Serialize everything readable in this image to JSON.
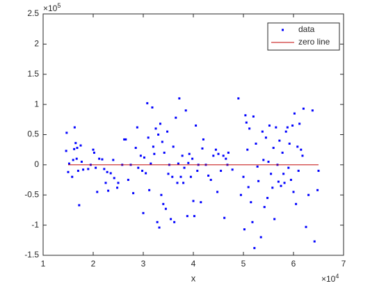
{
  "chart_data": {
    "type": "scatter",
    "xlabel": "x",
    "x_multiplier": {
      "base": "×10",
      "exponent": 4
    },
    "y_multiplier": {
      "base": "×10",
      "exponent": 5
    },
    "xlim": [
      1,
      7
    ],
    "xticks": [
      1,
      2,
      3,
      4,
      5,
      6,
      7
    ],
    "ylim": [
      -1.5,
      2.5
    ],
    "yticks": [
      -1.5,
      -1,
      -0.5,
      0,
      0.5,
      1,
      1.5,
      2,
      2.5
    ],
    "legend": "northeast",
    "series": [
      {
        "name": "data",
        "color": "#0000ff",
        "x": [
          1.47,
          1.46,
          1.5,
          1.52,
          1.58,
          1.6,
          1.62,
          1.63,
          1.65,
          1.67,
          1.68,
          1.7,
          1.72,
          1.75,
          1.77,
          1.8,
          1.9,
          1.95,
          2.0,
          2.02,
          2.05,
          2.08,
          2.12,
          2.18,
          2.22,
          2.25,
          2.28,
          2.3,
          2.35,
          2.4,
          2.42,
          2.48,
          2.5,
          2.58,
          2.62,
          2.65,
          2.7,
          2.75,
          2.8,
          2.85,
          2.88,
          2.9,
          2.95,
          2.98,
          3.0,
          3.02,
          3.05,
          3.08,
          3.1,
          3.12,
          3.15,
          3.18,
          3.2,
          3.22,
          3.25,
          3.28,
          3.3,
          3.32,
          3.34,
          3.36,
          3.38,
          3.4,
          3.42,
          3.45,
          3.48,
          3.5,
          3.52,
          3.55,
          3.58,
          3.6,
          3.62,
          3.65,
          3.68,
          3.7,
          3.72,
          3.75,
          3.78,
          3.8,
          3.82,
          3.85,
          3.88,
          3.9,
          3.92,
          3.95,
          3.98,
          4.0,
          4.02,
          4.05,
          4.08,
          4.1,
          4.15,
          4.18,
          4.2,
          4.25,
          4.3,
          4.35,
          4.4,
          4.45,
          4.48,
          4.5,
          4.55,
          4.6,
          4.62,
          4.65,
          4.68,
          4.7,
          4.78,
          4.9,
          4.95,
          5.0,
          5.02,
          5.04,
          5.06,
          5.08,
          5.1,
          5.12,
          5.15,
          5.18,
          5.2,
          5.22,
          5.25,
          5.28,
          5.3,
          5.35,
          5.38,
          5.4,
          5.42,
          5.45,
          5.48,
          5.5,
          5.52,
          5.55,
          5.58,
          5.6,
          5.62,
          5.65,
          5.68,
          5.7,
          5.72,
          5.75,
          5.78,
          5.8,
          5.82,
          5.85,
          5.88,
          5.9,
          5.92,
          5.95,
          5.98,
          6.0,
          6.02,
          6.05,
          6.08,
          6.1,
          6.12,
          6.15,
          6.18,
          6.2,
          6.25,
          6.3,
          6.38,
          6.42,
          6.48,
          6.5
        ],
        "values": [
          0.53,
          0.23,
          -0.12,
          0.02,
          -0.2,
          0.08,
          0.26,
          0.62,
          0.36,
          0.1,
          0.28,
          -0.1,
          -0.67,
          0.32,
          0.05,
          -0.08,
          -0.07,
          0.0,
          0.25,
          0.2,
          -0.05,
          -0.45,
          0.1,
          0.09,
          -0.07,
          -0.3,
          -0.12,
          -0.43,
          -0.14,
          0.08,
          -0.22,
          -0.38,
          -0.3,
          0.0,
          0.42,
          0.42,
          -0.25,
          0.0,
          -0.47,
          0.28,
          0.62,
          -0.05,
          0.15,
          -0.1,
          -0.8,
          0.12,
          -0.14,
          1.02,
          0.45,
          -0.42,
          0.02,
          0.95,
          0.3,
          0.18,
          0.6,
          -0.95,
          0.5,
          -1.04,
          0.68,
          -0.5,
          0.38,
          -0.65,
          0.2,
          -0.73,
          0.55,
          -0.15,
          0.0,
          -0.9,
          -0.2,
          0.3,
          -0.95,
          0.78,
          -0.3,
          0.02,
          1.1,
          -0.2,
          0.15,
          -0.3,
          -0.05,
          0.9,
          -0.85,
          0.03,
          0.18,
          -0.2,
          0.1,
          -0.6,
          -0.85,
          0.65,
          -0.1,
          0.0,
          -0.62,
          0.27,
          0.42,
          0.0,
          -0.18,
          -0.25,
          0.15,
          0.25,
          -0.45,
          0.18,
          -0.1,
          0.15,
          -0.88,
          0.1,
          0.0,
          0.2,
          -0.08,
          1.1,
          -0.5,
          -0.2,
          -1.07,
          0.82,
          0.7,
          0.25,
          -0.37,
          0.6,
          -0.62,
          -0.95,
          0.8,
          -1.38,
          0.35,
          -0.03,
          -0.27,
          -1.2,
          0.55,
          0.08,
          -0.7,
          0.45,
          -0.55,
          0.05,
          0.65,
          -0.15,
          -0.38,
          0.28,
          -0.9,
          0.62,
          0.0,
          -0.28,
          0.4,
          -0.35,
          0.2,
          -0.15,
          -0.3,
          0.55,
          0.62,
          -0.05,
          0.35,
          -0.25,
          0.65,
          -0.45,
          0.85,
          -0.65,
          0.3,
          -0.1,
          0.68,
          0.25,
          0.15,
          0.93,
          -1.03,
          -0.5,
          0.9,
          -1.27,
          -0.42,
          -0.1
        ]
      },
      {
        "name": "zero line",
        "color": "#c00000",
        "type": "line",
        "x": [
          1.5,
          6.5
        ],
        "values": [
          0,
          0
        ]
      }
    ]
  }
}
